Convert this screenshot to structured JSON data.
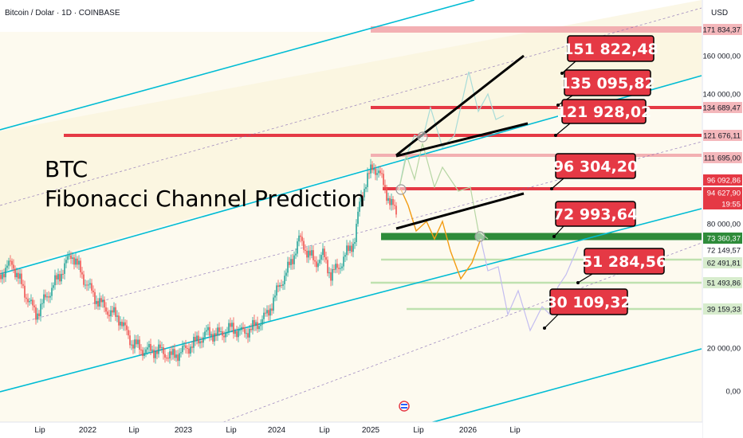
{
  "header": {
    "symbol": "Bitcoin / Dolar · 1D · COINBASE",
    "currency": "USD"
  },
  "title_lines": [
    "BTC",
    "Fibonacci Channel Prediction"
  ],
  "colors": {
    "channel": "#00bcd4",
    "level_red": "#e53945",
    "level_pink": "#f2a8ac",
    "level_green": "#2e8b3a",
    "level_lightgreen": "#b9dfa9",
    "bg_shade": "#fdfaef",
    "price_bull": "#26a69a",
    "price_bear": "#ef5350"
  },
  "price_axis_labels": [
    "171 834,37",
    "160 000,00",
    "140 000,00",
    "134 689,47",
    "121 676,11",
    "111 695,00",
    "96 092,86",
    "94 627,90",
    "19:55",
    "80 000,00",
    "73 360,37",
    "72 149,57",
    "62 491,81",
    "51 493,86",
    "39 159,33",
    "20 000,00",
    "0,00"
  ],
  "time_axis_labels": [
    "Lip",
    "2022",
    "Lip",
    "2023",
    "Lip",
    "2024",
    "Lip",
    "2025",
    "Lip",
    "2026",
    "Lip"
  ],
  "callouts": [
    "151 822,48",
    "135 095,82",
    "121 928,02",
    "96 304,20",
    "72 993,64",
    "51 284,56",
    "30 109,32"
  ],
  "chart_data": {
    "type": "line",
    "title": "BTC Fibonacci Channel Prediction",
    "symbol": "Bitcoin / Dolar, 1D, COINBASE",
    "y_unit": "USD",
    "x_ticks": [
      "Lip",
      "2022",
      "Lip",
      "2023",
      "Lip",
      "2024",
      "Lip",
      "2025",
      "Lip",
      "2026",
      "Lip"
    ],
    "y_ticks": [
      0,
      20000,
      80000,
      140000,
      160000
    ],
    "horizontal_levels": [
      {
        "value": 171834.37,
        "color": "#f2a8ac"
      },
      {
        "value": 134689.47,
        "color": "#e53945"
      },
      {
        "value": 121676.11,
        "color": "#e53945"
      },
      {
        "value": 111695.0,
        "color": "#f2a8ac"
      },
      {
        "value": 96092.86,
        "color": "#e53945"
      },
      {
        "value": 73360.37,
        "color": "#2e8b3a"
      },
      {
        "value": 62491.81,
        "color": "#b9dfa9"
      },
      {
        "value": 51493.86,
        "color": "#b9dfa9"
      },
      {
        "value": 39159.33,
        "color": "#b9dfa9"
      }
    ],
    "current_price": 94627.9,
    "countdown": "19:55",
    "targets": [
      151822.48,
      135095.82,
      121928.02,
      96304.2,
      72993.64,
      51284.56,
      30109.32
    ]
  }
}
